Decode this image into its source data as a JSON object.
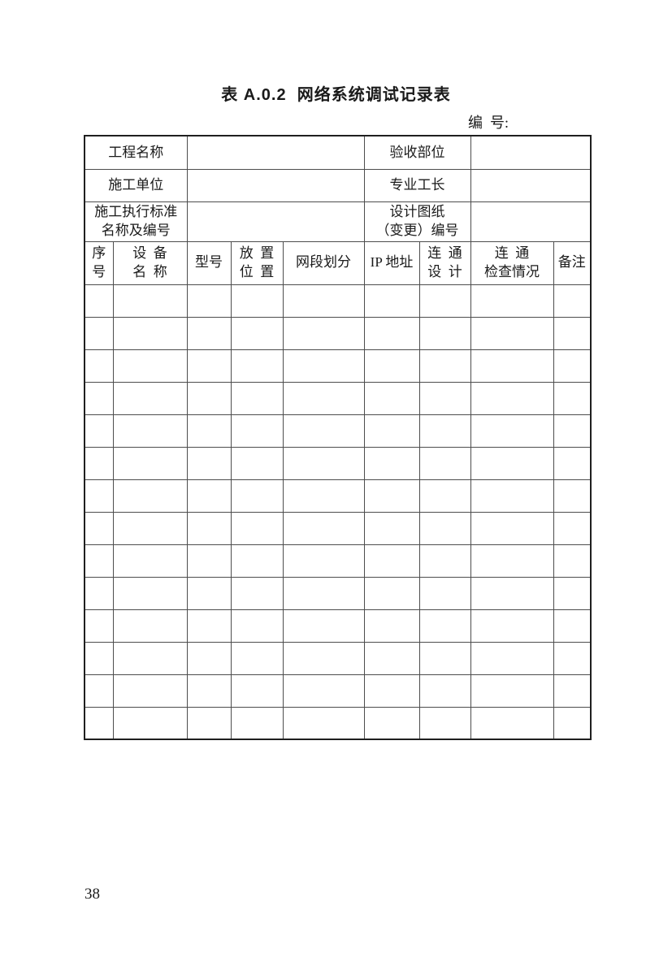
{
  "page": {
    "title": "表 A.0.2  网络系统调试记录表",
    "serial_label": "编  号:",
    "page_number": "38"
  },
  "form": {
    "info_rows": [
      {
        "label1": "工程名称",
        "value1": "",
        "label2": "验收部位",
        "value2": ""
      },
      {
        "label1": "施工单位",
        "value1": "",
        "label2": "专业工长",
        "value2": ""
      },
      {
        "label1": "施工执行标准\n名称及编号",
        "value1": "",
        "label2": "设计图纸\n（变更）编号",
        "value2": ""
      }
    ],
    "columns": [
      "序\n号",
      "设  备\n名  称",
      "型号",
      "放  置\n位  置",
      "网段划分",
      "IP 地址",
      "连  通\n设  计",
      "连  通\n检查情况",
      "备注"
    ],
    "empty_row_count": 14
  }
}
